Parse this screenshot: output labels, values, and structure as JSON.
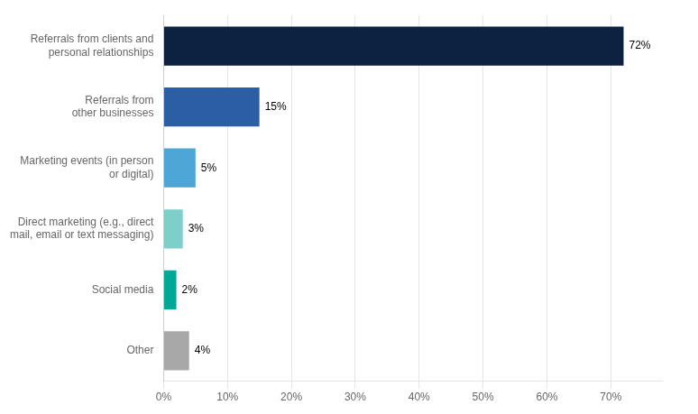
{
  "chart_data": {
    "type": "bar",
    "orientation": "horizontal",
    "categories": [
      "Other",
      "Social media",
      "Direct marketing (e.g., direct\nmail, email or text messaging)",
      "Marketing events (in person\nor digital)",
      "Referrals from\nother businesses",
      "Referrals from clients and\npersonal relationships"
    ],
    "values": [
      4,
      2,
      3,
      5,
      15,
      72
    ],
    "value_labels": [
      "4%",
      "2%",
      "3%",
      "5%",
      "15%",
      "72%"
    ],
    "colors": [
      "#a8a8a8",
      "#00a896",
      "#7ececa",
      "#4da6d6",
      "#2b5fa5",
      "#0d2240"
    ],
    "xlim": [
      0,
      78
    ],
    "xticks": [
      {
        "value": 0,
        "label": "0%"
      },
      {
        "value": 10,
        "label": "10%"
      },
      {
        "value": 20,
        "label": "20%"
      },
      {
        "value": 30,
        "label": "30%"
      },
      {
        "value": 40,
        "label": "40%"
      },
      {
        "value": 50,
        "label": "50%"
      },
      {
        "value": 60,
        "label": "60%"
      },
      {
        "value": 70,
        "label": "70%"
      }
    ],
    "grid": true,
    "data_labels": true
  }
}
